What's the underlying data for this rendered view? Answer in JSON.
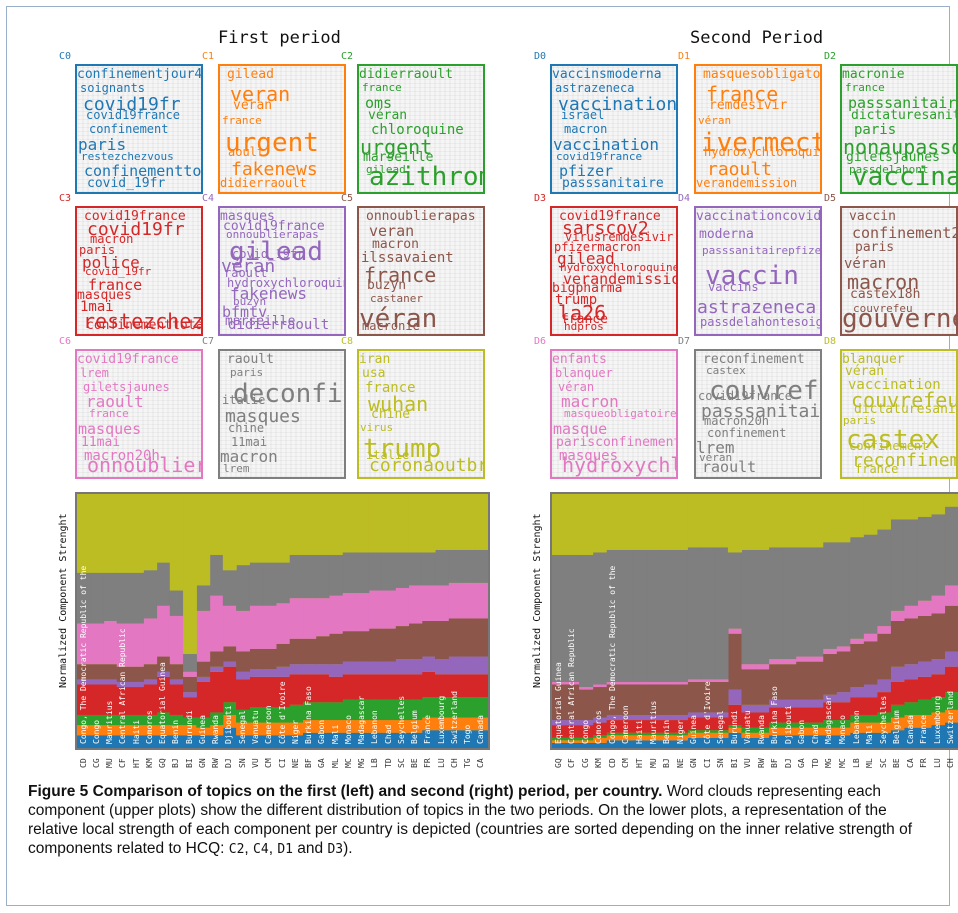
{
  "figure": {
    "left_title": "First period",
    "right_title": "Second Period",
    "y_axis_label": "Normalized Component Strenght"
  },
  "left_panels": [
    {
      "label": "C0",
      "color": "#1f77b4",
      "words": [
        "confinementjour4",
        "soignants",
        "covid19fr",
        "covid19france",
        "confinement",
        "paris",
        "restezchezvous",
        "confinementtotal",
        "covid_19fr"
      ]
    },
    {
      "label": "C1",
      "color": "#ff7f0e",
      "words": [
        "gilead",
        "veran",
        "véran",
        "france",
        "urgent",
        "aoult",
        "fakenews",
        "didierraoult"
      ]
    },
    {
      "label": "C2",
      "color": "#2ca02c",
      "words": [
        "didierraoult",
        "france",
        "oms",
        "véran",
        "chloroquine",
        "urgent",
        "marseille",
        "gilead",
        "azithromycine"
      ]
    },
    {
      "label": "C3",
      "color": "#d62728",
      "words": [
        "covid19france",
        "covid19fr",
        "macron",
        "paris",
        "police",
        "covid_19fr",
        "france",
        "masques",
        "1mai",
        "restezchezvous",
        "confinementtotal"
      ]
    },
    {
      "label": "C4",
      "color": "#9467bd",
      "words": [
        "masques",
        "covid19france",
        "onnoublierapas",
        "gilead",
        "covid_19fr",
        "véran",
        "raoult",
        "hydroxychloroquine",
        "fakenews",
        "buzyn",
        "bfmtv",
        "marseille",
        "didierraoult"
      ]
    },
    {
      "label": "C5",
      "color": "#8c564b",
      "words": [
        "onnoublierapas",
        "veran",
        "macron",
        "ilssavaient",
        "france",
        "buzyn",
        "castaner",
        "véran",
        "macronie"
      ]
    },
    {
      "label": "C6",
      "color": "#e377c2",
      "words": [
        "covid19france",
        "lrem",
        "giletsjaunes",
        "raoult",
        "france",
        "masques",
        "11mai",
        "macron20h",
        "onnoublierapas"
      ]
    },
    {
      "label": "C7",
      "color": "#7f7f7f",
      "words": [
        "raoult",
        "paris",
        "deconfinement",
        "italie",
        "masques",
        "chine",
        "11mai",
        "macron",
        "lrem"
      ]
    },
    {
      "label": "C8",
      "color": "#bcbd22",
      "words": [
        "iran",
        "usa",
        "france",
        "wuhan",
        "chine",
        "virus",
        "trump",
        "italie",
        "coronaoutbreak"
      ]
    }
  ],
  "right_panels": [
    {
      "label": "D0",
      "color": "#1f77b4",
      "words": [
        "vaccinsmoderna",
        "astrazeneca",
        "vaccinationcovid",
        "israel",
        "macron",
        "vaccination",
        "covid19france",
        "pfizer",
        "passsanitaire"
      ]
    },
    {
      "label": "D1",
      "color": "#ff7f0e",
      "words": [
        "masquesobligatoire",
        "france",
        "remdesivir",
        "véran",
        "ivermectine",
        "hydroxychloroquine",
        "raoult",
        "verandemission"
      ]
    },
    {
      "label": "D2",
      "color": "#2ca02c",
      "words": [
        "macronie",
        "france",
        "passsanitair",
        "dictaturesanitai",
        "paris",
        "nonaupassdelahont",
        "giletsjaunes",
        "passdelahont",
        "vaccination"
      ]
    },
    {
      "label": "D3",
      "color": "#d62728",
      "words": [
        "covid19france",
        "sarscov2",
        "virusremdesivir",
        "pfizermacron",
        "gilead",
        "hydroxychloroquine",
        "verandemission",
        "bigpharma",
        "trump",
        "la26",
        "france",
        "hdpros"
      ]
    },
    {
      "label": "D4",
      "color": "#9467bd",
      "words": [
        "vaccinationcovid",
        "moderna",
        "passsanitairepfizer",
        "vaccin",
        "vaccins",
        "astrazeneca",
        "passdelahontesoignants"
      ]
    },
    {
      "label": "D5",
      "color": "#8c564b",
      "words": [
        "vaccin",
        "confinement2",
        "paris",
        "véran",
        "macron",
        "castex18h",
        "couvrefeu",
        "gouvernement"
      ]
    },
    {
      "label": "D6",
      "color": "#e377c2",
      "words": [
        "enfants",
        "blanquer",
        "véran",
        "macron",
        "masqueobligatoire",
        "masque",
        "parisconfinement",
        "masques",
        "hydroxychloroquine"
      ]
    },
    {
      "label": "D7",
      "color": "#7f7f7f",
      "words": [
        "reconfinement",
        "castex",
        "couvrefeu",
        "covid19france",
        "passsanitaire",
        "macron20h",
        "confinement",
        "lrem",
        "véran",
        "raoult"
      ]
    },
    {
      "label": "D8",
      "color": "#bcbd22",
      "words": [
        "blanquer",
        "véran",
        "vaccination",
        "couvrefeu",
        "dictaturesanit",
        "paris",
        "castex",
        "confinement",
        "reconfinement",
        "france"
      ]
    }
  ],
  "series_colors": [
    "#1f77b4",
    "#ff7f0e",
    "#2ca02c",
    "#d62728",
    "#9467bd",
    "#8c564b",
    "#e377c2",
    "#7f7f7f",
    "#bcbd22"
  ],
  "chart_data": [
    {
      "type": "area",
      "title": "First period",
      "ylabel": "Normalized Component Strenght",
      "stacked": true,
      "categories": [
        "CD",
        "CG",
        "MU",
        "CF",
        "HT",
        "KM",
        "GQ",
        "BJ",
        "BI",
        "GN",
        "RW",
        "DJ",
        "SN",
        "VU",
        "CM",
        "CI",
        "NE",
        "BF",
        "GA",
        "ML",
        "MC",
        "MG",
        "LB",
        "TD",
        "SC",
        "BE",
        "FR",
        "LU",
        "CH",
        "TG",
        "CA"
      ],
      "series": [
        {
          "name": "C0",
          "values": [
            0.05,
            0.05,
            0.05,
            0.05,
            0.05,
            0.05,
            0.05,
            0.05,
            0.05,
            0.05,
            0.05,
            0.08,
            0.05,
            0.05,
            0.05,
            0.05,
            0.05,
            0.06,
            0.06,
            0.06,
            0.06,
            0.06,
            0.06,
            0.06,
            0.06,
            0.06,
            0.07,
            0.07,
            0.07,
            0.07,
            0.07
          ]
        },
        {
          "name": "C1",
          "values": [
            0.04,
            0.04,
            0.04,
            0.04,
            0.04,
            0.04,
            0.04,
            0.04,
            0.04,
            0.03,
            0.04,
            0.05,
            0.05,
            0.05,
            0.05,
            0.05,
            0.05,
            0.05,
            0.05,
            0.05,
            0.05,
            0.05,
            0.05,
            0.05,
            0.05,
            0.05,
            0.05,
            0.05,
            0.05,
            0.05,
            0.05
          ]
        },
        {
          "name": "C2",
          "values": [
            0.04,
            0.04,
            0.04,
            0.04,
            0.04,
            0.04,
            0.05,
            0.04,
            0.03,
            0.04,
            0.05,
            0.05,
            0.05,
            0.06,
            0.06,
            0.06,
            0.07,
            0.07,
            0.07,
            0.07,
            0.08,
            0.08,
            0.08,
            0.08,
            0.08,
            0.08,
            0.08,
            0.08,
            0.08,
            0.08,
            0.08
          ]
        },
        {
          "name": "C3",
          "values": [
            0.12,
            0.12,
            0.12,
            0.11,
            0.11,
            0.12,
            0.14,
            0.12,
            0.08,
            0.14,
            0.16,
            0.14,
            0.12,
            0.12,
            0.12,
            0.12,
            0.12,
            0.11,
            0.11,
            0.1,
            0.1,
            0.1,
            0.1,
            0.1,
            0.1,
            0.1,
            0.1,
            0.09,
            0.09,
            0.09,
            0.09
          ]
        },
        {
          "name": "C4",
          "values": [
            0.02,
            0.02,
            0.02,
            0.02,
            0.02,
            0.02,
            0.02,
            0.02,
            0.02,
            0.02,
            0.02,
            0.02,
            0.03,
            0.03,
            0.03,
            0.04,
            0.04,
            0.04,
            0.04,
            0.05,
            0.05,
            0.05,
            0.05,
            0.05,
            0.06,
            0.06,
            0.06,
            0.06,
            0.07,
            0.07,
            0.07
          ]
        },
        {
          "name": "C5",
          "values": [
            0.06,
            0.06,
            0.06,
            0.06,
            0.06,
            0.06,
            0.06,
            0.06,
            0.06,
            0.06,
            0.06,
            0.06,
            0.08,
            0.08,
            0.08,
            0.09,
            0.1,
            0.1,
            0.11,
            0.12,
            0.12,
            0.12,
            0.13,
            0.13,
            0.13,
            0.14,
            0.14,
            0.15,
            0.15,
            0.15,
            0.15
          ]
        },
        {
          "name": "C6",
          "values": [
            0.16,
            0.16,
            0.17,
            0.17,
            0.17,
            0.18,
            0.2,
            0.19,
            0.02,
            0.2,
            0.22,
            0.16,
            0.16,
            0.17,
            0.17,
            0.16,
            0.16,
            0.16,
            0.15,
            0.15,
            0.15,
            0.15,
            0.15,
            0.15,
            0.15,
            0.15,
            0.14,
            0.14,
            0.14,
            0.14,
            0.14
          ]
        },
        {
          "name": "C7",
          "values": [
            0.2,
            0.2,
            0.19,
            0.2,
            0.2,
            0.19,
            0.17,
            0.1,
            0.07,
            0.1,
            0.16,
            0.14,
            0.18,
            0.17,
            0.17,
            0.16,
            0.17,
            0.17,
            0.17,
            0.16,
            0.16,
            0.16,
            0.15,
            0.15,
            0.14,
            0.13,
            0.13,
            0.14,
            0.13,
            0.13,
            0.13
          ]
        },
        {
          "name": "C8",
          "values": [
            0.31,
            0.31,
            0.31,
            0.31,
            0.31,
            0.3,
            0.27,
            0.38,
            0.63,
            0.36,
            0.24,
            0.3,
            0.28,
            0.27,
            0.27,
            0.27,
            0.24,
            0.24,
            0.24,
            0.24,
            0.23,
            0.23,
            0.23,
            0.23,
            0.23,
            0.23,
            0.23,
            0.22,
            0.22,
            0.22,
            0.22
          ]
        }
      ],
      "ylim": [
        0,
        1
      ]
    },
    {
      "type": "area",
      "title": "Second Period",
      "ylabel": "Normalized Component Strenght",
      "stacked": true,
      "categories": [
        "GQ",
        "CF",
        "CG",
        "KM",
        "CD",
        "CM",
        "HT",
        "MU",
        "BJ",
        "NE",
        "GN",
        "CI",
        "SN",
        "BI",
        "VU",
        "RW",
        "BF",
        "DJ",
        "GA",
        "TD",
        "MG",
        "MC",
        "LB",
        "ML",
        "SC",
        "BE",
        "CA",
        "FR",
        "LU",
        "CH"
      ],
      "series": [
        {
          "name": "D0",
          "values": [
            0.02,
            0.02,
            0.02,
            0.02,
            0.03,
            0.03,
            0.03,
            0.03,
            0.03,
            0.03,
            0.04,
            0.04,
            0.04,
            0.06,
            0.04,
            0.04,
            0.05,
            0.05,
            0.05,
            0.05,
            0.05,
            0.05,
            0.06,
            0.06,
            0.06,
            0.07,
            0.08,
            0.08,
            0.09,
            0.1
          ]
        },
        {
          "name": "D1",
          "values": [
            0.01,
            0.01,
            0.01,
            0.02,
            0.02,
            0.02,
            0.02,
            0.02,
            0.02,
            0.02,
            0.02,
            0.02,
            0.02,
            0.02,
            0.02,
            0.02,
            0.03,
            0.03,
            0.03,
            0.03,
            0.03,
            0.03,
            0.04,
            0.04,
            0.04,
            0.05,
            0.05,
            0.05,
            0.05,
            0.05
          ]
        },
        {
          "name": "D2",
          "values": [
            0.01,
            0.01,
            0.01,
            0.01,
            0.01,
            0.01,
            0.01,
            0.01,
            0.01,
            0.01,
            0.01,
            0.01,
            0.01,
            0.01,
            0.02,
            0.02,
            0.02,
            0.02,
            0.02,
            0.02,
            0.03,
            0.03,
            0.03,
            0.03,
            0.04,
            0.05,
            0.05,
            0.06,
            0.06,
            0.07
          ]
        },
        {
          "name": "D3",
          "values": [
            0.05,
            0.05,
            0.05,
            0.05,
            0.05,
            0.05,
            0.05,
            0.05,
            0.05,
            0.05,
            0.05,
            0.05,
            0.05,
            0.08,
            0.06,
            0.06,
            0.06,
            0.06,
            0.06,
            0.06,
            0.07,
            0.07,
            0.07,
            0.07,
            0.08,
            0.09,
            0.09,
            0.09,
            0.09,
            0.1
          ]
        },
        {
          "name": "D4",
          "values": [
            0.02,
            0.02,
            0.02,
            0.02,
            0.02,
            0.02,
            0.02,
            0.02,
            0.02,
            0.02,
            0.02,
            0.02,
            0.02,
            0.06,
            0.03,
            0.03,
            0.03,
            0.03,
            0.03,
            0.03,
            0.03,
            0.04,
            0.04,
            0.05,
            0.05,
            0.06,
            0.06,
            0.06,
            0.06,
            0.06
          ]
        },
        {
          "name": "D5",
          "values": [
            0.14,
            0.14,
            0.12,
            0.12,
            0.12,
            0.12,
            0.12,
            0.12,
            0.12,
            0.12,
            0.12,
            0.12,
            0.12,
            0.22,
            0.14,
            0.14,
            0.14,
            0.14,
            0.15,
            0.15,
            0.16,
            0.16,
            0.17,
            0.17,
            0.18,
            0.18,
            0.18,
            0.18,
            0.18,
            0.18
          ]
        },
        {
          "name": "D6",
          "values": [
            0.01,
            0.01,
            0.01,
            0.01,
            0.01,
            0.01,
            0.01,
            0.01,
            0.01,
            0.01,
            0.01,
            0.01,
            0.01,
            0.02,
            0.02,
            0.02,
            0.02,
            0.02,
            0.02,
            0.02,
            0.02,
            0.02,
            0.02,
            0.03,
            0.03,
            0.04,
            0.05,
            0.06,
            0.07,
            0.08
          ]
        },
        {
          "name": "D7",
          "values": [
            0.5,
            0.5,
            0.52,
            0.52,
            0.52,
            0.52,
            0.52,
            0.52,
            0.52,
            0.52,
            0.52,
            0.52,
            0.52,
            0.3,
            0.45,
            0.45,
            0.44,
            0.44,
            0.43,
            0.43,
            0.42,
            0.41,
            0.4,
            0.39,
            0.38,
            0.36,
            0.34,
            0.33,
            0.32,
            0.31
          ]
        },
        {
          "name": "D8",
          "values": [
            0.24,
            0.24,
            0.24,
            0.23,
            0.22,
            0.22,
            0.22,
            0.22,
            0.22,
            0.22,
            0.21,
            0.21,
            0.21,
            0.23,
            0.22,
            0.22,
            0.21,
            0.21,
            0.21,
            0.21,
            0.19,
            0.19,
            0.17,
            0.16,
            0.14,
            0.1,
            0.1,
            0.09,
            0.08,
            0.05
          ]
        }
      ],
      "ylim": [
        0,
        1
      ]
    }
  ],
  "left_inner_labels": [
    "Congo, The Democratic Republic of the",
    "Congo",
    "Mauritius",
    "Central African Republic",
    "Haiti",
    "Comoros",
    "Equatorial Guinea",
    "Benin",
    "Burundi",
    "Guinea",
    "Rwanda",
    "Djibouti",
    "Senegal",
    "Vanuatu",
    "Cameroon",
    "Côte d'Ivoire",
    "Niger",
    "Burkina Faso",
    "Gabon",
    "Mali",
    "Monaco",
    "Madagascar",
    "Lebanon",
    "Chad",
    "Seychelles",
    "Belgium",
    "France",
    "Luxembourg",
    "Switzerland",
    "Togo",
    "Canada"
  ],
  "right_inner_labels": [
    "Equatorial Guinea",
    "Central African Republic",
    "Congo",
    "Comoros",
    "Congo, The Democratic Republic of the",
    "Cameroon",
    "Haiti",
    "Mauritius",
    "Benin",
    "Niger",
    "Guinea",
    "Côte d'Ivoire",
    "Senegal",
    "Burundi",
    "Vanuatu",
    "Rwanda",
    "Burkina Faso",
    "Djibouti",
    "Gabon",
    "Chad",
    "Madagascar",
    "Monaco",
    "Lebanon",
    "Mali",
    "Seychelles",
    "Belgium",
    "Canada",
    "France",
    "Luxembourg",
    "Switzerland"
  ],
  "caption": {
    "bold": "Figure 5 Comparison of topics on the first (left) and second (right) period, per country.",
    "text1": " Word clouds representing each component (upper plots) show the different distribution of topics in the two periods. On the lower plots, a representation of the relative local strength of each component per country is depicted (countries are sorted depending on the inner relative strength of components related to HCQ: ",
    "c2": "C2",
    "sep1": ", ",
    "c4": "C4",
    "sep2": ", ",
    "d1": "D1",
    "sep3": " and ",
    "d3": "D3",
    "end": ")."
  }
}
